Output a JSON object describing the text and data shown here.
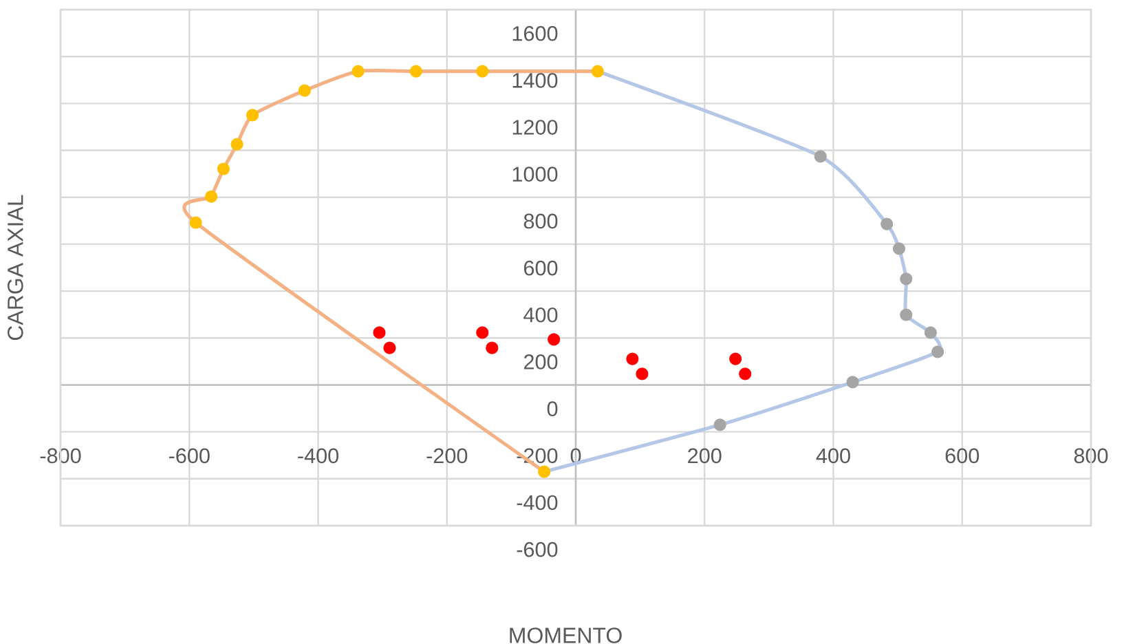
{
  "chart_data": {
    "type": "line",
    "xlabel": "MOMENTO",
    "ylabel": "CARGA  AXIAL",
    "xlim": [
      -800,
      800
    ],
    "xticks": [
      -800,
      -600,
      -400,
      -200,
      0,
      200,
      400,
      600,
      800
    ],
    "ylim": [
      -600,
      1600
    ],
    "yticks": [
      -600,
      -400,
      -200,
      0,
      200,
      400,
      600,
      800,
      1000,
      1200,
      1400,
      1600
    ],
    "grid": true,
    "series": [
      {
        "type": "line",
        "marker": "none",
        "color": "#b4c7e7",
        "x": [
          34,
          380,
          483,
          502,
          513,
          513,
          551,
          562,
          430,
          224,
          -49
        ],
        "values": [
          1337,
          974,
          686,
          581,
          452,
          299,
          223,
          141,
          12,
          -170,
          -370
        ]
      },
      {
        "type": "scatter",
        "marker": "circle",
        "color": "#a5a5a5",
        "x": [
          380,
          483,
          502,
          513,
          513,
          551,
          562,
          430,
          224
        ],
        "values": [
          974,
          686,
          581,
          452,
          299,
          223,
          141,
          12,
          -170
        ]
      },
      {
        "type": "line",
        "marker": "none",
        "color": "#f4b183",
        "x": [
          34,
          -145,
          -248,
          -338,
          -421,
          -502,
          -526,
          -547,
          -566,
          -590,
          -49
        ],
        "values": [
          1337,
          1337,
          1337,
          1337,
          1255,
          1150,
          1026,
          921,
          803,
          692,
          -370
        ]
      },
      {
        "type": "scatter",
        "marker": "circle",
        "color": "#ffc000",
        "x": [
          34,
          -145,
          -248,
          -338,
          -421,
          -502,
          -526,
          -547,
          -566,
          -590,
          -49
        ],
        "values": [
          1337,
          1337,
          1337,
          1337,
          1255,
          1150,
          1026,
          921,
          803,
          692,
          -370
        ]
      },
      {
        "type": "scatter",
        "marker": "circle",
        "color": "#ff0000",
        "x": [
          -305,
          -289,
          -145,
          -130,
          -34,
          88,
          103,
          248,
          263
        ],
        "values": [
          223,
          158,
          223,
          158,
          194,
          111,
          47,
          111,
          47
        ]
      }
    ]
  }
}
